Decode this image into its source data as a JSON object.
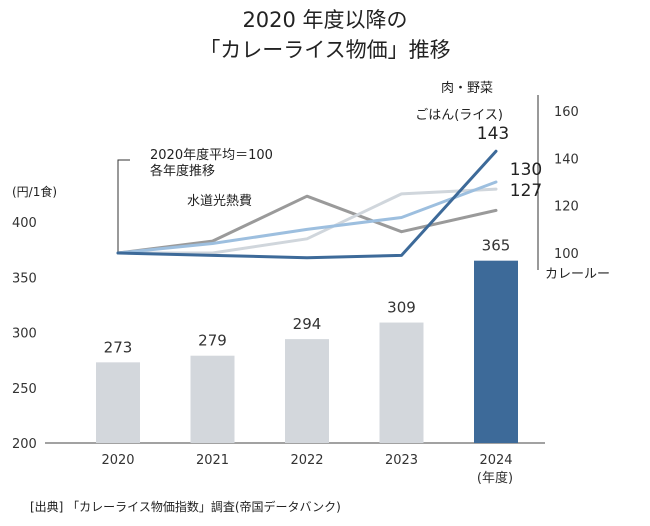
{
  "chart_data": {
    "type": "bar",
    "title_line1": "2020 年度以降の",
    "title_line2": "「カレーライス物価」推移",
    "categories": [
      "2020",
      "2021",
      "2022",
      "2023",
      "2024"
    ],
    "x_unit_note": "(年度)",
    "bar_unit": "(円/1食)",
    "values": [
      273,
      279,
      294,
      309,
      365
    ],
    "value_labels": [
      "273",
      "279",
      "294",
      "309",
      "365"
    ],
    "ylim": [
      200,
      400
    ],
    "yticks": [
      "400",
      "350",
      "300",
      "250",
      "200"
    ],
    "highlight_color": "#3d6a99",
    "bar_color": "#d3d7dc",
    "index_axis": {
      "ylim": [
        100,
        160
      ],
      "ticks": [
        "160",
        "140",
        "120",
        "100"
      ]
    },
    "index_note_line1": "2020年度平均＝100",
    "index_note_line2": "各年度推移",
    "series": [
      {
        "name": "カレールー",
        "values": [
          100,
          99,
          98,
          99,
          143
        ],
        "color": "#3d6a99",
        "end_label": "143"
      },
      {
        "name": "ごはん(ライス)",
        "values": [
          100,
          104,
          110,
          115,
          130
        ],
        "color": "#9dbfdf",
        "end_label": "130"
      },
      {
        "name": "肉・野菜",
        "values": [
          100,
          100,
          106,
          125,
          127
        ],
        "color": "#d0d6dc",
        "end_label": "127"
      },
      {
        "name": "水道光熱費",
        "values": [
          100,
          105,
          124,
          109,
          118
        ],
        "color": "#9a9a9a",
        "end_label": ""
      }
    ],
    "source": "[出典] 「カレーライス物価指数」調査(帝国データバンク)"
  }
}
